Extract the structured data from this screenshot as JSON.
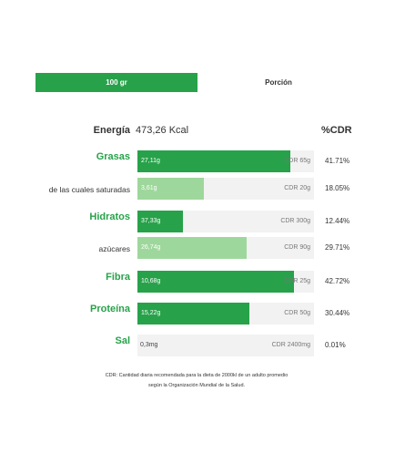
{
  "tabs": [
    {
      "label": "100 gr",
      "active": true
    },
    {
      "label": "Porción",
      "active": false
    }
  ],
  "energy": {
    "label": "Energía",
    "value": "473,26 Kcal"
  },
  "cdr_header": "%CDR",
  "colors": {
    "primary": "#27a24a",
    "secondary": "#9ed79b",
    "track": "#f2f2f2"
  },
  "rows": [
    {
      "label": "Grasas",
      "type": "main",
      "amount": "27,11g",
      "fraction": 0.4171,
      "cdr": "CDR 65g",
      "pct": "41.71%"
    },
    {
      "label": "de las cuales saturadas",
      "type": "sub",
      "amount": "3,61g",
      "fraction": 0.1805,
      "cdr": "CDR 20g",
      "pct": "18.05%"
    },
    {
      "label": "Hidratos",
      "type": "main",
      "amount": "37,33g",
      "fraction": 0.1244,
      "cdr": "CDR 300g",
      "pct": "12.44%"
    },
    {
      "label": "azúcares",
      "type": "sub",
      "amount": "26,74g",
      "fraction": 0.2971,
      "cdr": "CDR 90g",
      "pct": "29.71%"
    },
    {
      "label": "Fibra",
      "type": "main",
      "amount": "10,68g",
      "fraction": 0.4272,
      "cdr": "CDR 25g",
      "pct": "42.72%"
    },
    {
      "label": "Proteína",
      "type": "main",
      "amount": "15,22g",
      "fraction": 0.3044,
      "cdr": "CDR 50g",
      "pct": "30.44%"
    },
    {
      "label": "Sal",
      "type": "main",
      "amount": "0,3mg",
      "fraction": 0.0001,
      "cdr": "CDR 2400mg",
      "pct": "0.01%"
    }
  ],
  "footnote": {
    "line1": "CDR: Cantidad diaria recomendada para la dieta de 2000kl de un adulto promedio",
    "line2": "según la Organización Mundial de la Salud."
  }
}
